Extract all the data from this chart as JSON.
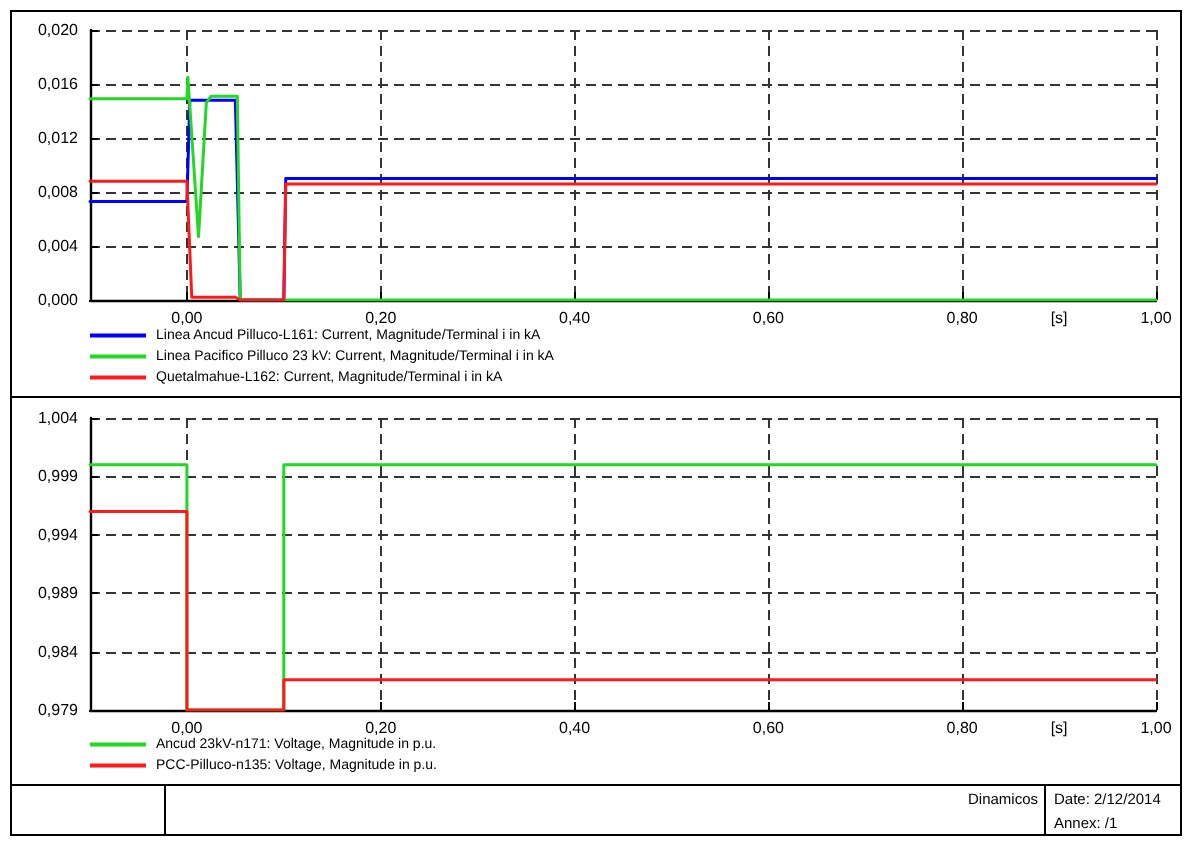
{
  "chart_data": [
    {
      "type": "line",
      "xlabel": "[s]",
      "xlim": [
        -0.1,
        1.0
      ],
      "xticks": [
        {
          "value": 0,
          "label": "0,00"
        },
        {
          "value": 0.2,
          "label": "0,20"
        },
        {
          "value": 0.4,
          "label": "0,40"
        },
        {
          "value": 0.6,
          "label": "0,60"
        },
        {
          "value": 0.8,
          "label": "0,80"
        },
        {
          "value": 1.0,
          "label": "1,00"
        }
      ],
      "ylim": [
        0,
        0.02
      ],
      "yticks": [
        {
          "value": 0,
          "label": "0,000"
        },
        {
          "value": 0.004,
          "label": "0,004"
        },
        {
          "value": 0.008,
          "label": "0,008"
        },
        {
          "value": 0.012,
          "label": "0,012"
        },
        {
          "value": 0.016,
          "label": "0,016"
        },
        {
          "value": 0.02,
          "label": "0,020"
        }
      ],
      "grid": true,
      "legend": "bottom left",
      "series": [
        {
          "name": "Linea Ancud Pilluco-L161: Current, Magnitude/Terminal i in kA",
          "color": "#0000ff",
          "x": [
            -0.1,
            0,
            0.003,
            0.05,
            0.055,
            0.1,
            0.102,
            1.0
          ],
          "values": [
            0.0073,
            0.0073,
            0.0148,
            0.0148,
            0,
            0,
            0.009,
            0.009
          ]
        },
        {
          "name": "Linea Pacifico Pilluco 23 kV: Current, Magnitude/Terminal i in kA",
          "color": "#22d822",
          "x": [
            -0.1,
            0,
            0.001,
            0.012,
            0.02,
            0.025,
            0.052,
            0.055,
            1.0
          ],
          "values": [
            0.0149,
            0.0149,
            0.0165,
            0.0047,
            0.0146,
            0.0151,
            0.0151,
            0,
            0
          ]
        },
        {
          "name": "Quetalmahue-L162: Current, Magnitude/Terminal i in kA",
          "color": "#ff1a1a",
          "x": [
            -0.1,
            0,
            0.005,
            0.05,
            0.055,
            0.1,
            0.102,
            1.0
          ],
          "values": [
            0.0088,
            0.0088,
            0.0002,
            0.0002,
            0,
            0,
            0.0086,
            0.0086
          ]
        }
      ]
    },
    {
      "type": "line",
      "xlabel": "[s]",
      "xlim": [
        -0.1,
        1.0
      ],
      "xticks": [
        {
          "value": 0,
          "label": "0,00"
        },
        {
          "value": 0.2,
          "label": "0,20"
        },
        {
          "value": 0.4,
          "label": "0,40"
        },
        {
          "value": 0.6,
          "label": "0,60"
        },
        {
          "value": 0.8,
          "label": "0,80"
        },
        {
          "value": 1.0,
          "label": "1,00"
        }
      ],
      "ylim": [
        0.979,
        1.004
      ],
      "yticks": [
        {
          "value": 0.979,
          "label": "0,979"
        },
        {
          "value": 0.984,
          "label": "0,984"
        },
        {
          "value": 0.989,
          "label": "0,989"
        },
        {
          "value": 0.994,
          "label": "0,994"
        },
        {
          "value": 0.999,
          "label": "0,999"
        },
        {
          "value": 1.004,
          "label": "1,004"
        }
      ],
      "grid": true,
      "legend": "bottom left",
      "series": [
        {
          "name": "Ancud 23kV-n171: Voltage, Magnitude in p.u.",
          "color": "#22d822",
          "x": [
            -0.1,
            0,
            0,
            0.1,
            0.1,
            1.0
          ],
          "values": [
            1.0,
            1.0,
            0.979,
            0.979,
            1.0,
            1.0
          ]
        },
        {
          "name": "PCC-Pilluco-n135: Voltage, Magnitude in p.u.",
          "color": "#ff1a1a",
          "x": [
            -0.1,
            0,
            0,
            0.1,
            0.1,
            1.0
          ],
          "values": [
            0.996,
            0.996,
            0.979,
            0.979,
            0.9816,
            0.9816
          ]
        }
      ],
      "annotations": [
        "Dinamicos",
        "Date: 2/12/2014",
        "Annex: /1"
      ]
    }
  ]
}
